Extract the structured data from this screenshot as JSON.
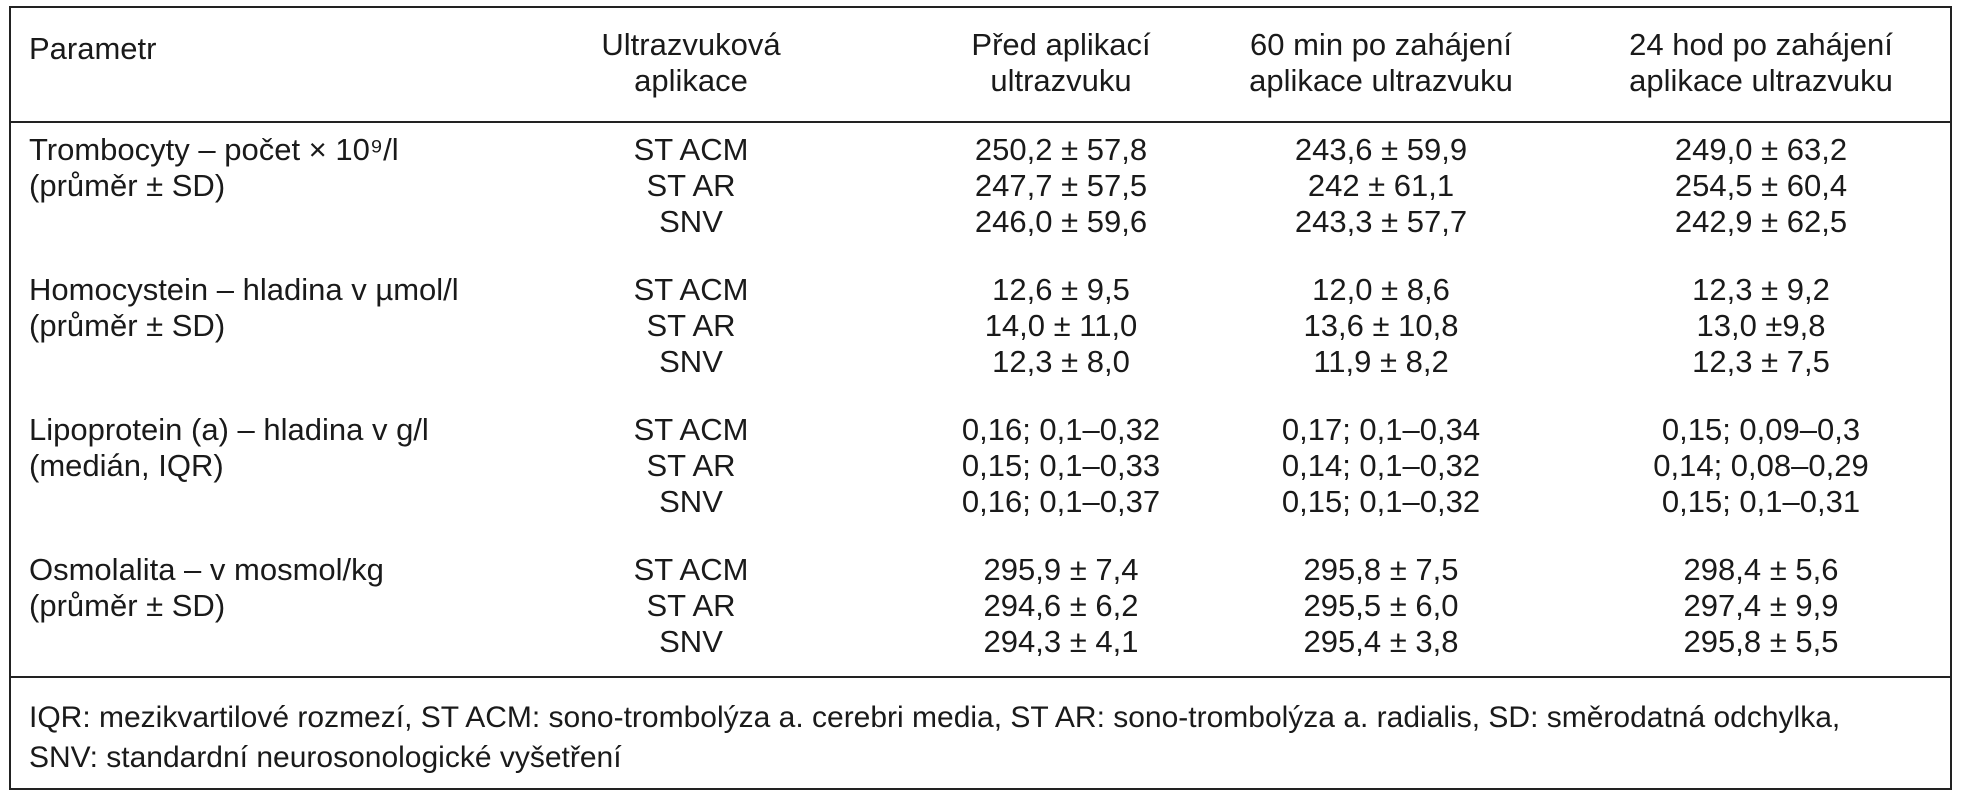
{
  "header": {
    "param": "Parametr",
    "app_line1": "Ultrazvuková",
    "app_line2": "aplikace",
    "before_line1": "Před aplikací",
    "before_line2": "ultrazvuku",
    "min60_line1": "60 min po zahájení",
    "min60_line2": "aplikace ultrazvuku",
    "h24_line1": "24 hod po zahájení",
    "h24_line2": "aplikace ultrazvuku"
  },
  "groups": [
    {
      "param_line1": "Trombocyty – počet × 10⁹/l",
      "param_line2": "(průměr ± SD)",
      "rows": [
        {
          "app": "ST ACM",
          "before": "250,2 ± 57,8",
          "min60": "243,6 ± 59,9",
          "h24": "249,0 ± 63,2"
        },
        {
          "app": "ST AR",
          "before": "247,7 ± 57,5",
          "min60": "242 ± 61,1",
          "h24": "254,5 ± 60,4"
        },
        {
          "app": "SNV",
          "before": "246,0 ± 59,6",
          "min60": "243,3 ± 57,7",
          "h24": "242,9 ± 62,5"
        }
      ]
    },
    {
      "param_line1": "Homocystein – hladina v µmol/l",
      "param_line2": "(průměr ± SD)",
      "rows": [
        {
          "app": "ST ACM",
          "before": "12,6 ± 9,5",
          "min60": "12,0 ± 8,6",
          "h24": "12,3 ± 9,2"
        },
        {
          "app": "ST AR",
          "before": "14,0 ± 11,0",
          "min60": "13,6 ± 10,8",
          "h24": "13,0 ±9,8"
        },
        {
          "app": "SNV",
          "before": "12,3 ± 8,0",
          "min60": "11,9 ± 8,2",
          "h24": "12,3 ± 7,5"
        }
      ]
    },
    {
      "param_line1": "Lipoprotein (a) – hladina v g/l",
      "param_line2": "(medián, IQR)",
      "rows": [
        {
          "app": "ST ACM",
          "before": "0,16; 0,1–0,32",
          "min60": "0,17; 0,1–0,34",
          "h24": "0,15; 0,09–0,3"
        },
        {
          "app": "ST AR",
          "before": "0,15; 0,1–0,33",
          "min60": "0,14; 0,1–0,32",
          "h24": "0,14; 0,08–0,29"
        },
        {
          "app": "SNV",
          "before": "0,16; 0,1–0,37",
          "min60": "0,15; 0,1–0,32",
          "h24": "0,15; 0,1–0,31"
        }
      ]
    },
    {
      "param_line1": "Osmolalita – v mosmol/kg",
      "param_line2": "(průměr ± SD)",
      "rows": [
        {
          "app": "ST ACM",
          "before": "295,9 ± 7,4",
          "min60": "295,8 ± 7,5",
          "h24": "298,4 ± 5,6"
        },
        {
          "app": "ST AR",
          "before": "294,6 ± 6,2",
          "min60": "295,5 ± 6,0",
          "h24": "297,4 ± 9,9"
        },
        {
          "app": "SNV",
          "before": "294,3 ± 4,1",
          "min60": "295,4 ± 3,8",
          "h24": "295,8 ± 5,5"
        }
      ]
    }
  ],
  "footnote": {
    "line1": "IQR: mezikvartilové rozmezí, ST ACM: sono-trombolýza a. cerebri media, ST AR: sono-trombolýza a. radialis, SD: směrodatná odchylka,",
    "line2": "SNV: standardní neurosonologické vyšetření"
  }
}
